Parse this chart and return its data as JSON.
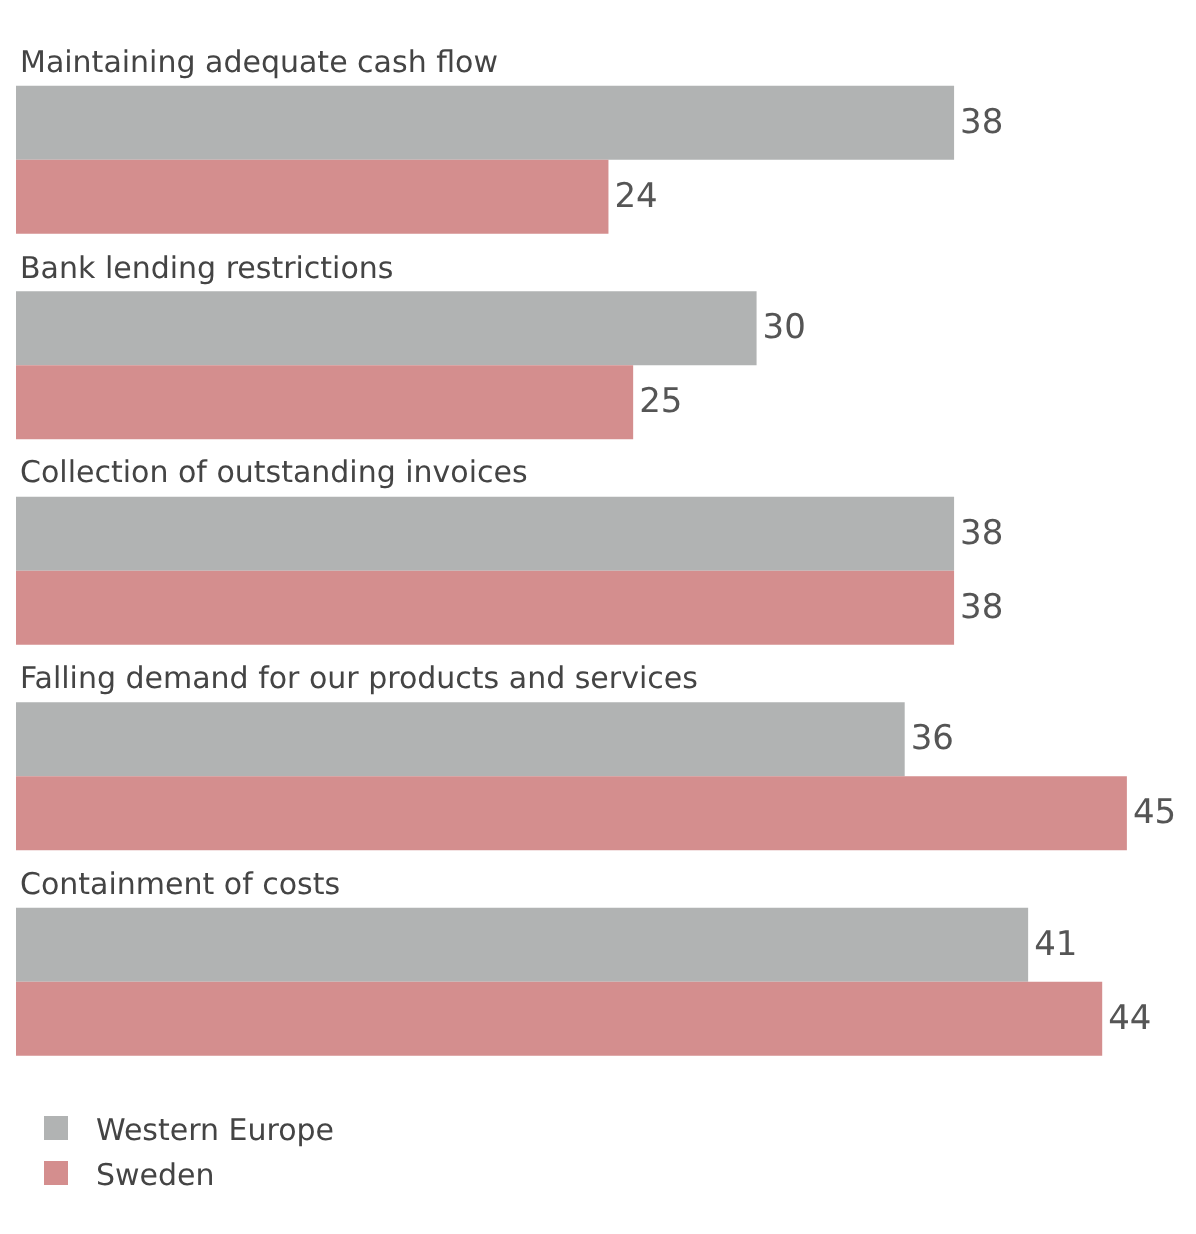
{
  "chart_data": {
    "type": "bar",
    "orientation": "horizontal",
    "categories": [
      "Maintaining adequate cash flow",
      "Bank lending restrictions",
      "Collection of outstanding invoices",
      "Falling demand for our products and services",
      "Containment of costs"
    ],
    "series": [
      {
        "name": "Western Europe",
        "color": "#b1b3b3",
        "values": [
          38,
          30,
          38,
          36,
          41
        ]
      },
      {
        "name": "Sweden",
        "color": "#d48e8e",
        "values": [
          24,
          25,
          38,
          45,
          44
        ]
      }
    ],
    "xlim": [
      0,
      47.8
    ],
    "data_labels": true,
    "tick_labels": false,
    "legend": "bottom left"
  }
}
